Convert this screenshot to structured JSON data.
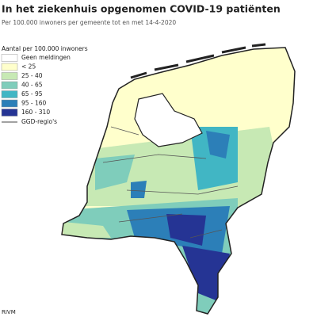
{
  "header": {
    "title": "In het ziekenhuis opgenomen COVID-19 patiënten",
    "subtitle": "Per 100.000 inwoners per gemeente tot en met 14-4-2020"
  },
  "legend": {
    "title": "Aantal per 100.000 inwoners",
    "items": [
      {
        "label": "Geen meldingen",
        "color": "#ffffff"
      },
      {
        "label": "< 25",
        "color": "#ffffcc"
      },
      {
        "label": "25 - 40",
        "color": "#c7e9b4"
      },
      {
        "label": "40 - 65",
        "color": "#7fcdbb"
      },
      {
        "label": "65 - 95",
        "color": "#41b6c4"
      },
      {
        "label": "95 - 160",
        "color": "#2c7fb8"
      },
      {
        "label": "160 - 310",
        "color": "#253494"
      }
    ],
    "line_label": "GGD-regio's"
  },
  "source": "RIVM"
}
